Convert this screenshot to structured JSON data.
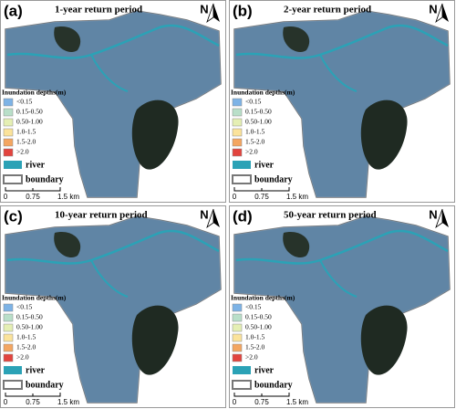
{
  "panels": [
    {
      "label": "(a)",
      "title": "1-year return period"
    },
    {
      "label": "(b)",
      "title": "2-year return period"
    },
    {
      "label": "(c)",
      "title": "10-year return period"
    },
    {
      "label": "(d)",
      "title": "50-year return period"
    }
  ],
  "north": "N",
  "legend": {
    "title": "Inundation depths(m)",
    "items": [
      {
        "label": "<0.15",
        "color": "#7db3e6"
      },
      {
        "label": "0.15-0.50",
        "color": "#b9dfc9"
      },
      {
        "label": "0.50-1.00",
        "color": "#e5efb4"
      },
      {
        "label": "1.0-1.5",
        "color": "#fbe39b"
      },
      {
        "label": "1.5-2.0",
        "color": "#f4a661"
      },
      {
        "label": ">2.0",
        "color": "#e2443e"
      }
    ],
    "river": {
      "label": "river",
      "color": "#2ba2b6"
    },
    "boundary": {
      "label": "boundary"
    }
  },
  "scale": {
    "labels": [
      "0",
      "0.75",
      "1.5 km"
    ]
  }
}
